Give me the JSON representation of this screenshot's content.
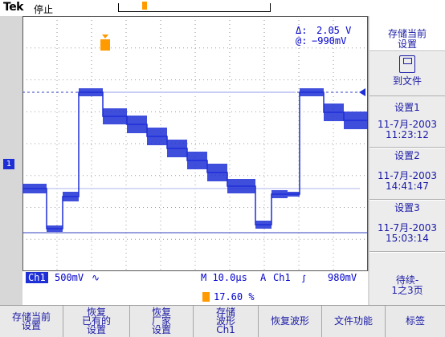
{
  "status_bar": {
    "brand": "Tek",
    "acq_state": "停止"
  },
  "measurements": {
    "delta_label": "Δ:",
    "delta_value": "2.05 V",
    "at_label": "@:",
    "at_value": "−990mV"
  },
  "channel_marker": "1",
  "readout": {
    "channel": "Ch1",
    "volts_div": "500mV",
    "coupling_symbol": "∿",
    "time_div": "M 10.0µs",
    "trig_mode": "A",
    "trig_source": "Ch1",
    "trig_slope": "ꭍ",
    "trig_level": "980mV",
    "trig_position": "17.60 %"
  },
  "side_menu": {
    "title_line1": "存储当前",
    "title_line2": "设置",
    "to_file": "到文件",
    "slots": [
      {
        "label": "设置1",
        "date": "11-7月-2003",
        "time": "11:23:12"
      },
      {
        "label": "设置2",
        "date": "11-7月-2003",
        "time": "14:41:47"
      },
      {
        "label": "设置3",
        "date": "11-7月-2003",
        "time": "15:03:14"
      }
    ],
    "more_line1": "待续-",
    "more_line2": "1之3页"
  },
  "bottom_menu": [
    {
      "lines": [
        "存储当前",
        "设置"
      ]
    },
    {
      "lines": [
        "恢复",
        "已有的",
        "设置"
      ]
    },
    {
      "lines": [
        "恢复",
        "厂家",
        "设置"
      ]
    },
    {
      "lines": [
        "存储",
        "波形",
        "Ch1"
      ]
    },
    {
      "lines": [
        "恢复波形"
      ]
    },
    {
      "lines": [
        "文件功能"
      ]
    },
    {
      "lines": [
        "标签"
      ]
    }
  ],
  "colors": {
    "trace": "#1e2fd6",
    "trigger": "#ff9a00",
    "menu_text": "#1a1aa6"
  }
}
